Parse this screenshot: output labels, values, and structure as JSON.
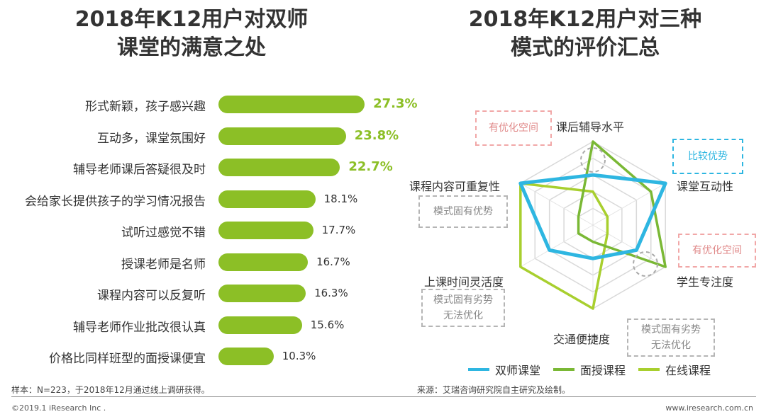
{
  "left_title_line1": "2018年K12用户对双师",
  "left_title_line2": "课堂的满意之处",
  "right_title_line1": "2018年K12用户对三种",
  "right_title_line2": "模式的评价汇总",
  "chart_data": [
    {
      "type": "bar",
      "orientation": "horizontal",
      "title": "2018年K12用户对双师课堂的满意之处",
      "categories": [
        "形式新颖，孩子感兴趣",
        "互动多，课堂氛围好",
        "辅导老师课后答疑很及时",
        "会给家长提供孩子的学习情况报告",
        "试听过感觉不错",
        "授课老师是名师",
        "课程内容可以反复听",
        "辅导老师作业批改很认真",
        "价格比同样班型的面授课便宜"
      ],
      "values": [
        27.3,
        23.8,
        22.7,
        18.1,
        17.7,
        16.7,
        16.3,
        15.6,
        10.3
      ],
      "labels": [
        "27.3%",
        "23.8%",
        "22.7%",
        "18.1%",
        "17.7%",
        "16.7%",
        "16.3%",
        "15.6%",
        "10.3%"
      ],
      "highlight_top": 3,
      "color": "#8cbf26"
    },
    {
      "type": "radar",
      "title": "2018年K12用户对三种模式的评价汇总",
      "axes": [
        "课后辅导水平",
        "课堂互动性",
        "学生专注度",
        "交通便捷度",
        "上课时间灵活度",
        "课程内容可重复性"
      ],
      "levels": 5,
      "series": [
        {
          "name": "双师课堂",
          "color": "#2eb6e1",
          "values": [
            3,
            5,
            3,
            2,
            3,
            5
          ]
        },
        {
          "name": "面授课程",
          "color": "#7ab835",
          "values": [
            5,
            4,
            5,
            1,
            1,
            1
          ]
        },
        {
          "name": "在线课程",
          "color": "#a8cf2e",
          "values": [
            2,
            1,
            1,
            5,
            5,
            5
          ]
        }
      ]
    }
  ],
  "annotations": {
    "a1": "有优化空间",
    "a2": "比较优势",
    "a3": "模式固有优势",
    "a4": "有优化空间",
    "a5_line1": "模式固有劣势",
    "a5_line2": "无法优化",
    "a6_line1": "模式固有劣势",
    "a6_line2": "无法优化"
  },
  "colors": {
    "box_red": "#f1a7a7",
    "box_blue": "#2eb6e1",
    "box_gray": "#b5b5b5"
  },
  "note_left": "样本：N=223，于2018年12月通过线上调研获得。",
  "note_right": "来源：艾瑞咨询研究院自主研究及绘制。",
  "footer_left": "©2019.1 iResearch Inc .",
  "footer_right": "www.iresearch.com.cn"
}
